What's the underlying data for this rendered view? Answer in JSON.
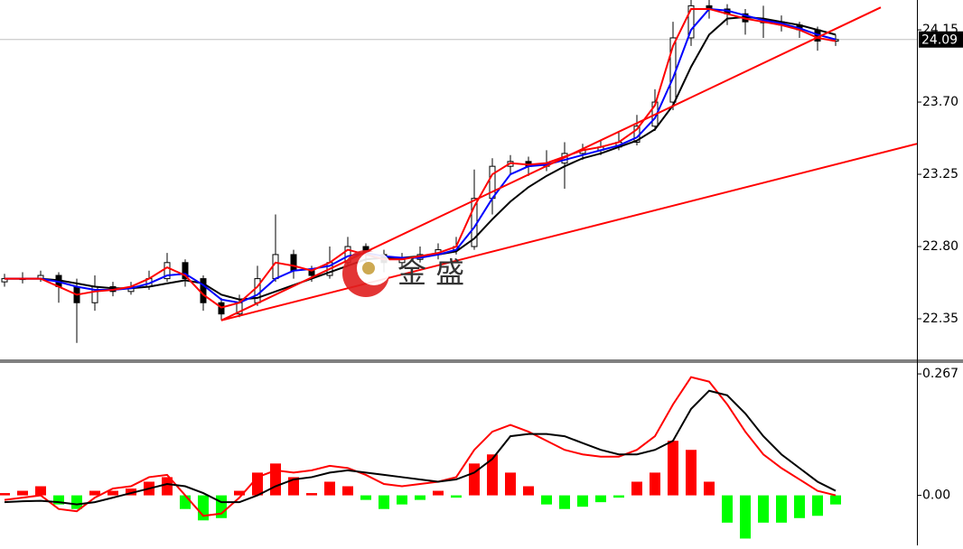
{
  "watermark": "金 盛",
  "chart_data": [
    {
      "type": "candlestick",
      "ylim": [
        22.097,
        24.336
      ],
      "yticks": [
        22.35,
        {
          "value": 22.8,
          "label": "22.80"
        },
        23.25,
        {
          "value": 23.7,
          "label": "23.70"
        },
        24.15
      ],
      "last_price": 24.09,
      "candles": [
        [
          22.58,
          22.63,
          22.55,
          22.6
        ],
        [
          22.6,
          22.64,
          22.57,
          22.6
        ],
        [
          22.6,
          22.65,
          22.58,
          22.62
        ],
        [
          22.62,
          22.64,
          22.45,
          22.55
        ],
        [
          22.55,
          22.6,
          22.2,
          22.45
        ],
        [
          22.45,
          22.62,
          22.4,
          22.55
        ],
        [
          22.55,
          22.58,
          22.49,
          22.52
        ],
        [
          22.52,
          22.58,
          22.5,
          22.55
        ],
        [
          22.55,
          22.65,
          22.53,
          22.6
        ],
        [
          22.6,
          22.76,
          22.58,
          22.7
        ],
        [
          22.7,
          22.72,
          22.55,
          22.6
        ],
        [
          22.6,
          22.62,
          22.4,
          22.45
        ],
        [
          22.45,
          22.48,
          22.34,
          22.38
        ],
        [
          22.38,
          22.5,
          22.36,
          22.45
        ],
        [
          22.45,
          22.68,
          22.43,
          22.6
        ],
        [
          22.6,
          23.0,
          22.58,
          22.75
        ],
        [
          22.75,
          22.78,
          22.6,
          22.65
        ],
        [
          22.65,
          22.68,
          22.58,
          22.62
        ],
        [
          22.62,
          22.8,
          22.6,
          22.7
        ],
        [
          22.7,
          22.86,
          22.68,
          22.8
        ],
        [
          22.8,
          22.82,
          22.7,
          22.75
        ],
        [
          22.75,
          22.78,
          22.64,
          22.7
        ],
        [
          22.7,
          22.76,
          22.66,
          22.72
        ],
        [
          22.72,
          22.8,
          22.7,
          22.75
        ],
        [
          22.75,
          22.82,
          22.72,
          22.78
        ],
        [
          22.78,
          22.86,
          22.75,
          22.8
        ],
        [
          22.8,
          23.28,
          22.78,
          23.1
        ],
        [
          23.1,
          23.35,
          23.0,
          23.3
        ],
        [
          23.3,
          23.37,
          23.25,
          23.33
        ],
        [
          23.33,
          23.36,
          23.24,
          23.3
        ],
        [
          23.3,
          23.4,
          23.27,
          23.32
        ],
        [
          23.32,
          23.45,
          23.16,
          23.38
        ],
        [
          23.38,
          23.44,
          23.34,
          23.4
        ],
        [
          23.4,
          23.46,
          23.37,
          23.42
        ],
        [
          23.42,
          23.52,
          23.4,
          23.45
        ],
        [
          23.45,
          23.62,
          23.43,
          23.55
        ],
        [
          23.55,
          23.78,
          23.52,
          23.7
        ],
        [
          23.7,
          24.2,
          23.65,
          24.1
        ],
        [
          24.1,
          24.35,
          24.05,
          24.3
        ],
        [
          24.3,
          24.34,
          24.22,
          24.28
        ],
        [
          24.28,
          24.31,
          24.18,
          24.25
        ],
        [
          24.25,
          24.28,
          24.12,
          24.2
        ],
        [
          24.2,
          24.3,
          24.1,
          24.2
        ],
        [
          24.2,
          24.24,
          24.14,
          24.18
        ],
        [
          24.18,
          24.2,
          24.1,
          24.15
        ],
        [
          24.15,
          24.17,
          24.02,
          24.08
        ],
        [
          24.08,
          24.12,
          24.05,
          24.09
        ]
      ],
      "moving_averages": [
        {
          "color": "#000000",
          "values": [
            22.6,
            22.6,
            22.6,
            22.59,
            22.57,
            22.55,
            22.54,
            22.54,
            22.55,
            22.57,
            22.59,
            22.57,
            22.5,
            22.47,
            22.48,
            22.52,
            22.56,
            22.6,
            22.64,
            22.68,
            22.72,
            22.73,
            22.73,
            22.74,
            22.75,
            22.77,
            22.85,
            22.97,
            23.08,
            23.17,
            23.24,
            23.3,
            23.35,
            23.38,
            23.42,
            23.46,
            23.53,
            23.68,
            23.92,
            24.12,
            24.22,
            24.23,
            24.22,
            24.2,
            24.18,
            24.15,
            24.12
          ]
        },
        {
          "color": "#0000ff",
          "values": [
            22.6,
            22.6,
            22.6,
            22.58,
            22.55,
            22.53,
            22.53,
            22.54,
            22.57,
            22.62,
            22.63,
            22.56,
            22.47,
            22.45,
            22.5,
            22.6,
            22.65,
            22.66,
            22.68,
            22.74,
            22.76,
            22.74,
            22.73,
            22.73,
            22.75,
            22.78,
            22.92,
            23.1,
            23.25,
            23.3,
            23.31,
            23.34,
            23.37,
            23.4,
            23.43,
            23.48,
            23.6,
            23.85,
            24.15,
            24.28,
            24.27,
            24.24,
            24.21,
            24.19,
            24.16,
            24.12,
            24.09
          ]
        },
        {
          "color": "#ff0000",
          "values": [
            22.6,
            22.6,
            22.6,
            22.55,
            22.5,
            22.52,
            22.53,
            22.55,
            22.6,
            22.67,
            22.62,
            22.5,
            22.42,
            22.45,
            22.55,
            22.7,
            22.68,
            22.65,
            22.7,
            22.78,
            22.75,
            22.72,
            22.72,
            22.74,
            22.76,
            22.8,
            23.05,
            23.25,
            23.32,
            23.31,
            23.32,
            23.36,
            23.4,
            23.42,
            23.45,
            23.53,
            23.68,
            24.05,
            24.28,
            24.28,
            24.25,
            24.22,
            24.2,
            24.18,
            24.15,
            24.1,
            24.08
          ]
        }
      ],
      "trendlines": [
        {
          "color": "#ff0000",
          "points": [
            [
              12,
              22.34
            ],
            [
              48.5,
              24.29
            ]
          ]
        },
        {
          "color": "#ff0000",
          "points": [
            [
              12,
              22.34
            ],
            [
              50.5,
              23.44
            ]
          ]
        }
      ]
    },
    {
      "type": "macd",
      "ylim": [
        -0.11,
        0.291
      ],
      "yticks": [
        {
          "value": 0,
          "label": "0.00"
        },
        0.267
      ],
      "histogram": {
        "positive_color": "#ff0000",
        "negative_color": "#00ff00",
        "values": [
          0.005,
          0.01,
          0.02,
          -0.02,
          -0.03,
          0.01,
          0.01,
          0.015,
          0.03,
          0.04,
          -0.03,
          -0.055,
          -0.05,
          0.01,
          0.05,
          0.07,
          0.04,
          0.005,
          0.03,
          0.02,
          -0.01,
          -0.03,
          -0.02,
          -0.01,
          0.01,
          -0.005,
          0.07,
          0.09,
          0.05,
          0.02,
          -0.02,
          -0.03,
          -0.025,
          -0.015,
          -0.005,
          0.03,
          0.05,
          0.12,
          0.1,
          0.03,
          -0.06,
          -0.095,
          -0.06,
          -0.06,
          -0.05,
          -0.045,
          -0.02
        ]
      },
      "lines": [
        {
          "color": "#ff0000",
          "values": [
            -0.01,
            -0.005,
            0.0,
            -0.03,
            -0.035,
            -0.005,
            0.015,
            0.02,
            0.04,
            0.045,
            0.0,
            -0.045,
            -0.04,
            -0.005,
            0.04,
            0.055,
            0.05,
            0.055,
            0.065,
            0.06,
            0.045,
            0.025,
            0.02,
            0.025,
            0.03,
            0.04,
            0.1,
            0.14,
            0.155,
            0.14,
            0.12,
            0.1,
            0.09,
            0.085,
            0.085,
            0.1,
            0.13,
            0.2,
            0.26,
            0.25,
            0.2,
            0.14,
            0.09,
            0.06,
            0.035,
            0.01,
            0.0
          ]
        },
        {
          "color": "#000000",
          "values": [
            -0.015,
            -0.013,
            -0.012,
            -0.015,
            -0.02,
            -0.015,
            -0.005,
            0.005,
            0.015,
            0.025,
            0.02,
            0.005,
            -0.015,
            -0.015,
            0.0,
            0.02,
            0.035,
            0.04,
            0.05,
            0.055,
            0.05,
            0.045,
            0.04,
            0.035,
            0.03,
            0.035,
            0.05,
            0.08,
            0.13,
            0.135,
            0.135,
            0.13,
            0.115,
            0.1,
            0.09,
            0.09,
            0.1,
            0.12,
            0.19,
            0.23,
            0.22,
            0.18,
            0.13,
            0.09,
            0.06,
            0.03,
            0.01
          ]
        }
      ]
    }
  ]
}
